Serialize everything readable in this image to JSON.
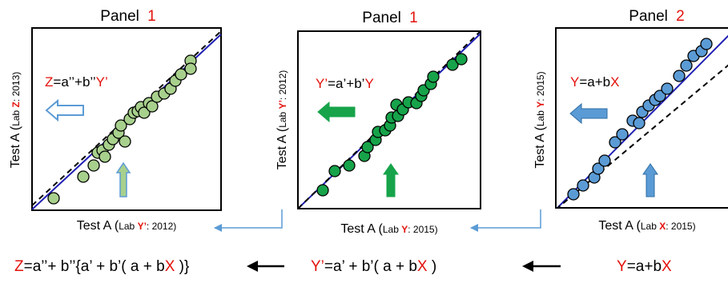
{
  "colors": {
    "accent_red": "#e3120b",
    "fit_line": "#1f1fb4",
    "identity_line": "#000000",
    "panel_left_points": "#a8d08d",
    "panel_mid_points": "#16a34a",
    "panel_right_points": "#5b9bd5",
    "connector": "#5b9bd5"
  },
  "panels": [
    {
      "title_word": "Panel",
      "title_number": "1",
      "equation": {
        "lhs": "Z",
        "rest1": "=a’’+b’’",
        "var": "Y’"
      },
      "y_label": {
        "pre": "Test A (",
        "lab": "Lab ",
        "var": "Z",
        "year": ": 2013)"
      },
      "x_label": {
        "pre": "Test A (",
        "lab": "Lab ",
        "var": "Y’",
        "year": ": 2012)"
      },
      "arrow_up_icon": "up-arrow-icon",
      "arrow_left_icon": "left-arrow-icon"
    },
    {
      "title_word": "Panel",
      "title_number": "1",
      "equation": {
        "lhs": "Y’",
        "rest1": "=a’+b’",
        "var": "Y"
      },
      "y_label": {
        "pre": "Test A (",
        "lab": "Lab ",
        "var": "Y’",
        "year": ": 2012)"
      },
      "x_label": {
        "pre": "Test A (",
        "lab": "Lab ",
        "var": "Y",
        "year": ": 2015)"
      },
      "arrow_up_icon": "up-arrow-icon",
      "arrow_left_icon": "left-arrow-icon"
    },
    {
      "title_word": "Panel",
      "title_number": "2",
      "equation": {
        "lhs": "Y",
        "rest1": "=a+b",
        "var": "X"
      },
      "y_label": {
        "pre": "Test A (",
        "lab": "Lab ",
        "var": "Y",
        "year": ": 2015)"
      },
      "x_label": {
        "pre": "Test A (",
        "lab": "Lab ",
        "var": "X",
        "year": ": 2015)"
      },
      "arrow_up_icon": "up-arrow-icon",
      "arrow_left_icon": "left-arrow-icon"
    }
  ],
  "bottom": {
    "eq_left": {
      "lhs": "Z",
      "p1": "=a’’+ b’’{a’ + b’( a + b",
      "x": "X",
      "p2": " )}"
    },
    "eq_mid": {
      "lhs": "Y’",
      "p1": "=a’ + b’( a + b",
      "x": "X",
      "p2": " )"
    },
    "eq_right": {
      "lhs": "Y",
      "p1": "=a+b",
      "x": "X"
    },
    "arrow_icon": "left-arrow-icon"
  }
}
